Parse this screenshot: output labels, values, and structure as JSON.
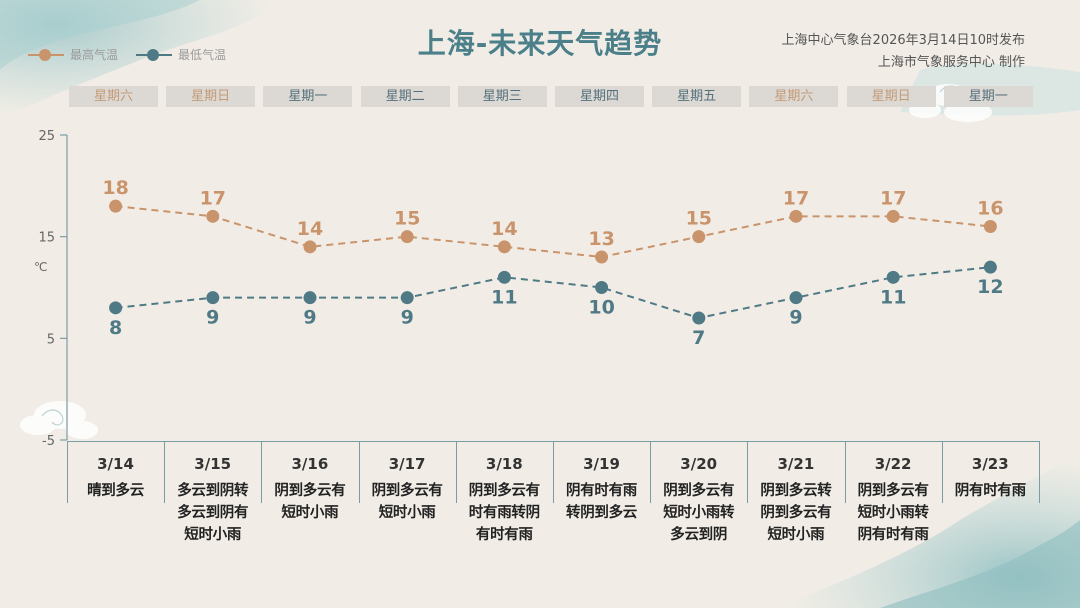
{
  "header": {
    "title": "上海-未来天气趋势",
    "publisher_line1": "上海中心气象台2026年3月14日10时发布",
    "publisher_line2": "上海市气象服务中心  制作"
  },
  "legend": [
    {
      "name": "最高气温",
      "color": "#c9946b"
    },
    {
      "name": "最低气温",
      "color": "#4f7a85"
    }
  ],
  "weekdays": [
    {
      "label": "星期六",
      "weekend": true
    },
    {
      "label": "星期日",
      "weekend": true
    },
    {
      "label": "星期一",
      "weekend": false
    },
    {
      "label": "星期二",
      "weekend": false
    },
    {
      "label": "星期三",
      "weekend": false
    },
    {
      "label": "星期四",
      "weekend": false
    },
    {
      "label": "星期五",
      "weekend": false
    },
    {
      "label": "星期六",
      "weekend": true
    },
    {
      "label": "星期日",
      "weekend": true
    },
    {
      "label": "星期一",
      "weekend": false
    }
  ],
  "chart_data": {
    "type": "line",
    "title": "上海-未来天气趋势",
    "categories": [
      "3/14",
      "3/15",
      "3/16",
      "3/17",
      "3/18",
      "3/19",
      "3/20",
      "3/21",
      "3/22",
      "3/23"
    ],
    "series": [
      {
        "name": "最高气温",
        "values": [
          18,
          17,
          14,
          15,
          14,
          13,
          15,
          17,
          17,
          16
        ],
        "color": "#c9946b",
        "label_position": "above"
      },
      {
        "name": "最低气温",
        "values": [
          8,
          9,
          9,
          9,
          11,
          10,
          7,
          9,
          11,
          12
        ],
        "color": "#4f7a85",
        "label_position": "below"
      }
    ],
    "ylabel": "℃",
    "ylim": [
      -5,
      25
    ],
    "yticks": [
      25,
      15,
      5,
      -5
    ],
    "line_style": "dashed",
    "grid": false,
    "legend_position": "top-left"
  },
  "forecast": [
    {
      "date": "3/14",
      "desc": [
        "晴到多云"
      ]
    },
    {
      "date": "3/15",
      "desc": [
        "多云到阴转",
        "多云到阴有",
        "短时小雨"
      ]
    },
    {
      "date": "3/16",
      "desc": [
        "阴到多云有",
        "短时小雨"
      ]
    },
    {
      "date": "3/17",
      "desc": [
        "阴到多云有",
        "短时小雨"
      ]
    },
    {
      "date": "3/18",
      "desc": [
        "阴到多云有",
        "时有雨转阴",
        "有时有雨"
      ]
    },
    {
      "date": "3/19",
      "desc": [
        "阴有时有雨",
        "转阴到多云"
      ]
    },
    {
      "date": "3/20",
      "desc": [
        "阴到多云有",
        "短时小雨转",
        "多云到阴"
      ]
    },
    {
      "date": "3/21",
      "desc": [
        "阴到多云转",
        "阴到多云有",
        "短时小雨"
      ]
    },
    {
      "date": "3/22",
      "desc": [
        "阴到多云有",
        "短时小雨转",
        "阴有时有雨"
      ]
    },
    {
      "date": "3/23",
      "desc": [
        "阴有时有雨"
      ]
    }
  ]
}
